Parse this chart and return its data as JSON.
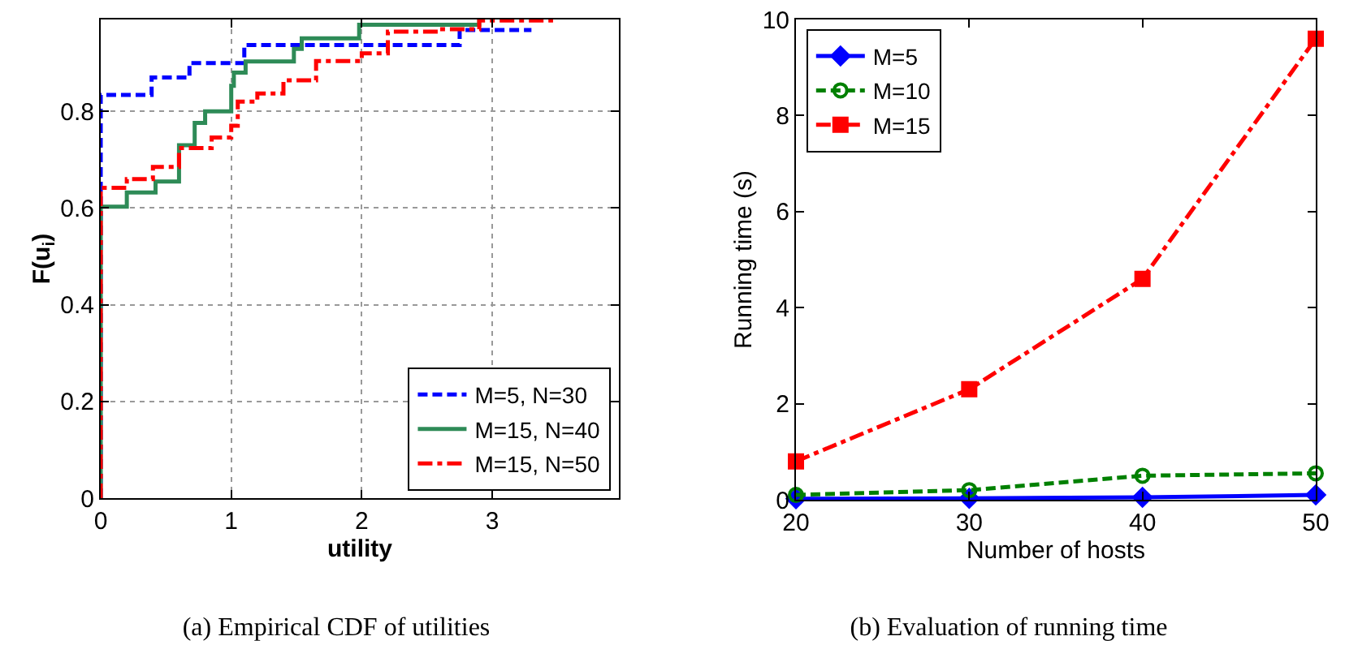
{
  "chart_data": [
    {
      "type": "step",
      "title": "(a) Empirical CDF of utilities",
      "xlabel": "utility",
      "ylabel": "F(u$_{i}$)",
      "xlim": [
        0,
        3.97
      ],
      "xticks": [
        0,
        1,
        2,
        3
      ],
      "ylim": [
        0,
        0.99
      ],
      "yticks": [
        0,
        0.2,
        0.4,
        0.6,
        0.8
      ],
      "grid": true,
      "legend": "bottom right",
      "marker": "none",
      "series": [
        {
          "name": "M=5, N=30",
          "color": "#0000ff",
          "line_style": "dashed",
          "x": [
            0,
            0,
            0.39,
            0.68,
            1.1,
            2.75,
            3.3
          ],
          "values": [
            0,
            0.834,
            0.87,
            0.9,
            0.937,
            0.968,
            0.968
          ]
        },
        {
          "name": "M=15, N=40",
          "color": "#2e8b57",
          "line_style": "solid",
          "x": [
            0,
            0,
            0.2,
            0.42,
            0.6,
            0.72,
            0.8,
            1.0,
            1.02,
            1.11,
            1.48,
            1.54,
            1.98,
            2.9
          ],
          "values": [
            0,
            0.603,
            0.632,
            0.655,
            0.73,
            0.776,
            0.8,
            0.853,
            0.88,
            0.903,
            0.929,
            0.951,
            0.979,
            0.99
          ]
        },
        {
          "name": "M=15, N=50",
          "color": "#ff0000",
          "line_style": "dashdot",
          "x": [
            0,
            0,
            0.2,
            0.4,
            0.6,
            0.85,
            1.0,
            1.05,
            1.2,
            1.4,
            1.65,
            2.0,
            2.2,
            2.6,
            2.9,
            3.45
          ],
          "values": [
            0,
            0.642,
            0.66,
            0.685,
            0.724,
            0.746,
            0.77,
            0.82,
            0.837,
            0.864,
            0.904,
            0.92,
            0.965,
            0.97,
            0.988,
            0.99
          ]
        }
      ]
    },
    {
      "type": "line",
      "title": "(b) Evaluation of running time",
      "xlabel": "Number of hosts",
      "ylabel": "Running time (s)",
      "xlim": [
        20,
        50
      ],
      "xticks": [
        20,
        30,
        40,
        50
      ],
      "ylim": [
        0,
        10
      ],
      "yticks": [
        0,
        2,
        4,
        6,
        8,
        10
      ],
      "grid": false,
      "legend": "top left",
      "x": [
        20,
        30,
        40,
        50
      ],
      "series": [
        {
          "name": "M=5",
          "color": "#0000ff",
          "line_style": "solid",
          "marker": "diamond",
          "values": [
            0.02,
            0.03,
            0.05,
            0.1
          ]
        },
        {
          "name": "M=10",
          "color": "#008000",
          "line_style": "dashed",
          "marker": "circle",
          "values": [
            0.1,
            0.2,
            0.5,
            0.55
          ]
        },
        {
          "name": "M=15",
          "color": "#ff0000",
          "line_style": "dashdot",
          "marker": "square",
          "values": [
            0.8,
            2.3,
            4.6,
            9.6
          ]
        }
      ]
    }
  ]
}
